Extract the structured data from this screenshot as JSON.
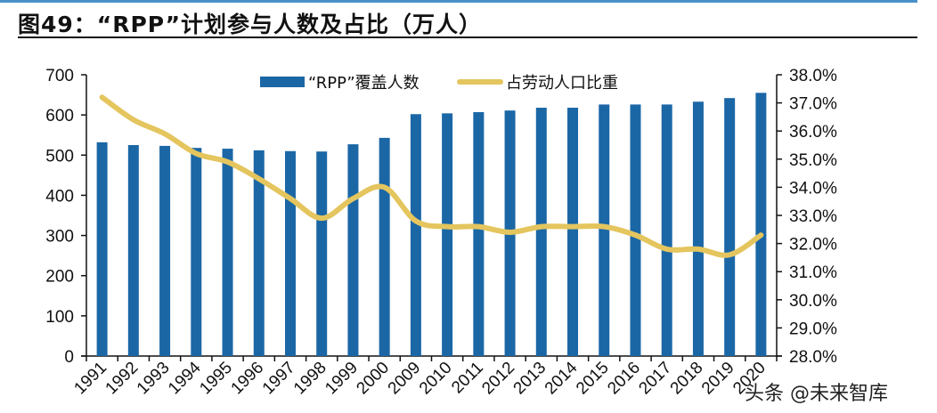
{
  "title": "图49：“RPP”计划参与人数及占比（万人）",
  "watermark": "头条 @未来智库",
  "chart_data": {
    "type": "bar+line",
    "title": "图49：“RPP”计划参与人数及占比（万人）",
    "categories": [
      "1991",
      "1992",
      "1993",
      "1994",
      "1995",
      "1996",
      "1997",
      "1998",
      "1999",
      "2000",
      "2009",
      "2010",
      "2011",
      "2012",
      "2013",
      "2014",
      "2015",
      "2016",
      "2017",
      "2018",
      "2019",
      "2020"
    ],
    "series": [
      {
        "name": "“RPP”覆盖人数",
        "type": "bar",
        "axis": "left",
        "color": "#1b67a6",
        "values": [
          532,
          525,
          523,
          518,
          516,
          512,
          510,
          509,
          527,
          543,
          602,
          604,
          607,
          611,
          618,
          618,
          626,
          626,
          626,
          633,
          642,
          655
        ]
      },
      {
        "name": "占劳动人口比重",
        "type": "line",
        "axis": "right",
        "color": "#e4c55e",
        "values": [
          37.2,
          36.4,
          35.9,
          35.2,
          34.9,
          34.3,
          33.6,
          32.9,
          33.6,
          34.0,
          32.8,
          32.6,
          32.6,
          32.4,
          32.6,
          32.6,
          32.6,
          32.3,
          31.8,
          31.8,
          31.6,
          32.3
        ]
      }
    ],
    "y_left": {
      "range": [
        0,
        700
      ],
      "ticks": [
        "0",
        "100",
        "200",
        "300",
        "400",
        "500",
        "600",
        "700"
      ]
    },
    "y_right": {
      "range": [
        28,
        38
      ],
      "ticks": [
        "28.0%",
        "29.0%",
        "30.0%",
        "31.0%",
        "32.0%",
        "33.0%",
        "34.0%",
        "35.0%",
        "36.0%",
        "37.0%",
        "38.0%"
      ]
    },
    "legend": "top-center",
    "grid": false
  }
}
